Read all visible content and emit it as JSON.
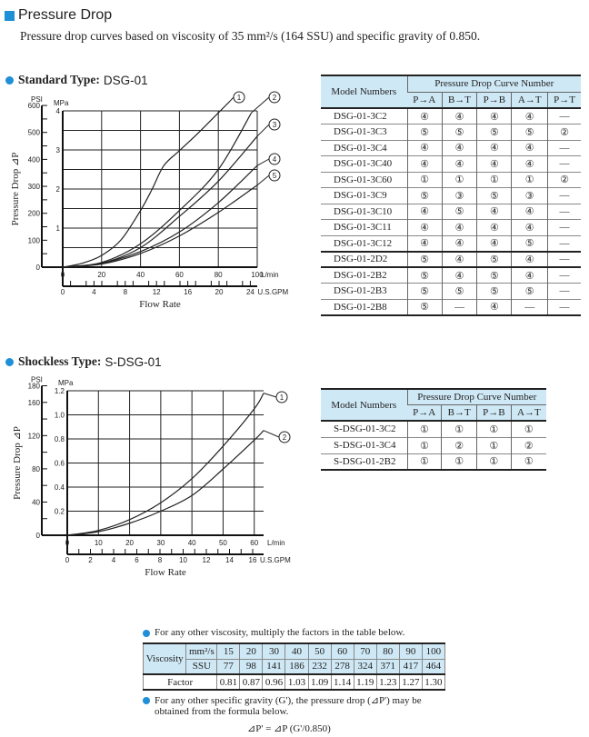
{
  "header": {
    "title": "Pressure Drop",
    "subtitle": "Pressure drop curves based on viscosity of 35 mm²/s (164 SSU) and specific gravity of 0.850."
  },
  "standard": {
    "label_bold": "Standard Type:",
    "label_model": "DSG-01",
    "table": {
      "model_header": "Model Numbers",
      "group_header": "Pressure Drop Curve Number",
      "columns": [
        "P→A",
        "B→T",
        "P→B",
        "A→T",
        "P→T"
      ],
      "rows": [
        {
          "model": "DSG-01-3C2",
          "values": [
            "④",
            "④",
            "④",
            "④",
            "—"
          ]
        },
        {
          "model": "DSG-01-3C3",
          "values": [
            "⑤",
            "⑤",
            "⑤",
            "⑤",
            "②"
          ]
        },
        {
          "model": "DSG-01-3C4",
          "values": [
            "④",
            "④",
            "④",
            "④",
            "—"
          ]
        },
        {
          "model": "DSG-01-3C40",
          "values": [
            "④",
            "④",
            "④",
            "④",
            "—"
          ]
        },
        {
          "model": "DSG-01-3C60",
          "values": [
            "①",
            "①",
            "①",
            "①",
            "②"
          ]
        },
        {
          "model": "DSG-01-3C9",
          "values": [
            "⑤",
            "③",
            "⑤",
            "③",
            "—"
          ]
        },
        {
          "model": "DSG-01-3C10",
          "values": [
            "④",
            "⑤",
            "④",
            "④",
            "—"
          ]
        },
        {
          "model": "DSG-01-3C11",
          "values": [
            "④",
            "④",
            "④",
            "④",
            "—"
          ]
        },
        {
          "model": "DSG-01-3C12",
          "values": [
            "④",
            "④",
            "④",
            "⑤",
            "—"
          ]
        },
        {
          "model": "DSG-01-2D2",
          "values": [
            "⑤",
            "④",
            "⑤",
            "④",
            "—"
          ]
        },
        {
          "model": "DSG-01-2B2",
          "values": [
            "⑤",
            "④",
            "⑤",
            "④",
            "—"
          ]
        },
        {
          "model": "DSG-01-2B3",
          "values": [
            "⑤",
            "⑤",
            "⑤",
            "⑤",
            "—"
          ]
        },
        {
          "model": "DSG-01-2B8",
          "values": [
            "⑤",
            "—",
            "④",
            "—",
            "—"
          ]
        }
      ]
    }
  },
  "shockless": {
    "label_bold": "Shockless Type:",
    "label_model": "S-DSG-01",
    "table": {
      "model_header": "Model Numbers",
      "group_header": "Pressure Drop Curve Number",
      "columns": [
        "P→A",
        "B→T",
        "P→B",
        "A→T"
      ],
      "rows": [
        {
          "model": "S-DSG-01-3C2",
          "values": [
            "①",
            "①",
            "①",
            "①"
          ]
        },
        {
          "model": "S-DSG-01-3C4",
          "values": [
            "①",
            "②",
            "①",
            "②"
          ]
        },
        {
          "model": "S-DSG-01-2B2",
          "values": [
            "①",
            "①",
            "①",
            "①"
          ]
        }
      ]
    }
  },
  "chart_data": [
    {
      "type": "line",
      "ylabel": "Pressure Drop ⊿P",
      "xlabel": "Flow Rate",
      "y_unit_left": "PSI",
      "y_unit_right": "MPa",
      "x_unit": "L/min",
      "x2_unit": "U.S.GPM",
      "xlim": [
        0,
        100
      ],
      "ylim_mpa": [
        0,
        4
      ],
      "ylim_psi": [
        0,
        600
      ],
      "x2lim": [
        0,
        24
      ],
      "psi_ticks": [
        "0",
        "100",
        "200",
        "300",
        "400",
        "500",
        "600"
      ],
      "mpa_ticks": [
        "1",
        "2",
        "3",
        "4"
      ],
      "x_ticks": [
        "0",
        "20",
        "40",
        "60",
        "80",
        "100"
      ],
      "x2_ticks": [
        "0",
        "4",
        "8",
        "12",
        "16",
        "20",
        "24"
      ],
      "grid": true,
      "series": [
        {
          "name": "①",
          "x": [
            0,
            10,
            20,
            30,
            40,
            46,
            52,
            60,
            70,
            80,
            86
          ],
          "y": [
            0,
            0.1,
            0.3,
            0.7,
            1.45,
            2.0,
            2.6,
            2.98,
            3.45,
            3.95,
            4.25
          ]
        },
        {
          "name": "②",
          "x": [
            0,
            20,
            40,
            60,
            80,
            97
          ],
          "y": [
            0,
            0.12,
            0.6,
            1.45,
            2.5,
            3.95
          ]
        },
        {
          "name": "③",
          "x": [
            0,
            20,
            40,
            60,
            80,
            100
          ],
          "y": [
            0,
            0.1,
            0.5,
            1.3,
            2.2,
            3.35
          ]
        },
        {
          "name": "④",
          "x": [
            0,
            20,
            40,
            60,
            80,
            100
          ],
          "y": [
            0,
            0.1,
            0.4,
            0.9,
            1.65,
            2.6
          ]
        },
        {
          "name": "⑤",
          "x": [
            0,
            20,
            40,
            60,
            80,
            100
          ],
          "y": [
            0,
            0.08,
            0.35,
            0.8,
            1.4,
            2.1
          ]
        }
      ]
    },
    {
      "type": "line",
      "ylabel": "Pressure Drop ⊿P",
      "xlabel": "Flow Rate",
      "y_unit_left": "PSI",
      "y_unit_right": "MPa",
      "x_unit": "L/min",
      "x2_unit": "U.S.GPM",
      "xlim": [
        0,
        63
      ],
      "ylim_mpa": [
        0,
        1.2
      ],
      "ylim_psi": [
        0,
        180
      ],
      "x2lim": [
        0,
        16
      ],
      "psi_ticks": [
        "0",
        "40",
        "80",
        "120",
        "160",
        "180"
      ],
      "mpa_ticks": [
        "0.2",
        "0.4",
        "0.6",
        "0.8",
        "1.0",
        "1.2"
      ],
      "x_ticks": [
        "0",
        "10",
        "20",
        "30",
        "40",
        "50",
        "60"
      ],
      "x2_ticks": [
        "0",
        "2",
        "4",
        "6",
        "8",
        "10",
        "12",
        "14",
        "16"
      ],
      "grid": true,
      "series": [
        {
          "name": "①",
          "x": [
            0,
            10,
            20,
            30,
            40,
            50,
            60,
            63
          ],
          "y": [
            0,
            0.04,
            0.13,
            0.27,
            0.47,
            0.74,
            1.05,
            1.18
          ]
        },
        {
          "name": "②",
          "x": [
            0,
            10,
            20,
            30,
            40,
            50,
            60,
            63
          ],
          "y": [
            0,
            0.03,
            0.1,
            0.2,
            0.33,
            0.55,
            0.79,
            0.87
          ]
        }
      ]
    }
  ],
  "viscosity": {
    "note1": "For any other viscosity, multiply the factors in the table below.",
    "row_label": "Viscosity",
    "unit1": "mm²/s",
    "unit2": "SSU",
    "factor_label": "Factor",
    "mm2s": [
      "15",
      "20",
      "30",
      "40",
      "50",
      "60",
      "70",
      "80",
      "90",
      "100"
    ],
    "ssu": [
      "77",
      "98",
      "141",
      "186",
      "232",
      "278",
      "324",
      "371",
      "417",
      "464"
    ],
    "factor": [
      "0.81",
      "0.87",
      "0.96",
      "1.03",
      "1.09",
      "1.14",
      "1.19",
      "1.23",
      "1.27",
      "1.30"
    ],
    "note2": "For any other specific gravity (G'), the pressure drop (⊿P') may be obtained from the formula below.",
    "formula": "⊿P' = ⊿P (G'/0.850)"
  },
  "colors": {
    "accent": "#1f8fd6",
    "table_header": "#cfe8f5"
  }
}
